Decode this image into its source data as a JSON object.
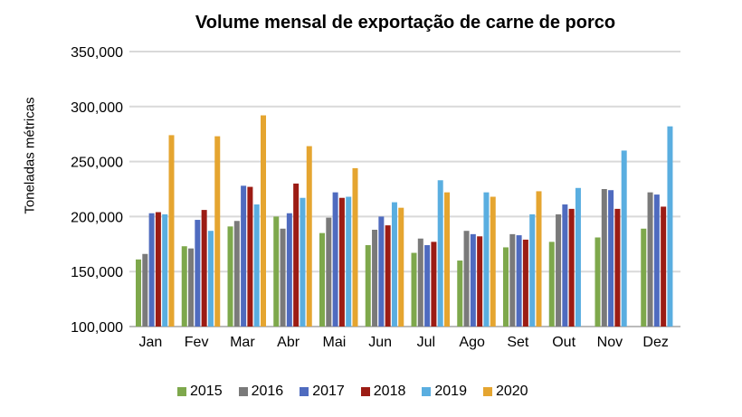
{
  "chart_data": {
    "type": "bar",
    "title": "Volume mensal de exportação de carne de porco",
    "xlabel": "",
    "ylabel": "Toneladas métricas",
    "ylim": [
      100000,
      350000
    ],
    "yticks": [
      "100,000",
      "150,000",
      "200,000",
      "250,000",
      "300,000",
      "350,000"
    ],
    "grid": true,
    "legend": "bottom",
    "categories": [
      "Jan",
      "Fev",
      "Mar",
      "Abr",
      "Mai",
      "Jun",
      "Jul",
      "Ago",
      "Set",
      "Out",
      "Nov",
      "Dez"
    ],
    "series": [
      {
        "name": "2015",
        "color": "#7ea84c",
        "values": [
          161000,
          173000,
          191000,
          200000,
          185000,
          174000,
          167000,
          160000,
          172000,
          177000,
          181000,
          189000
        ]
      },
      {
        "name": "2016",
        "color": "#7a7a7a",
        "values": [
          166000,
          171000,
          196000,
          189000,
          199000,
          188000,
          180000,
          187000,
          184000,
          202000,
          225000,
          222000
        ]
      },
      {
        "name": "2017",
        "color": "#4f6bbf",
        "values": [
          203000,
          197000,
          228000,
          203000,
          222000,
          200000,
          174000,
          184000,
          183000,
          211000,
          224000,
          220000
        ]
      },
      {
        "name": "2018",
        "color": "#9c1c14",
        "values": [
          204000,
          206000,
          227000,
          230000,
          217000,
          192000,
          177000,
          182000,
          179000,
          207000,
          207000,
          209000
        ]
      },
      {
        "name": "2019",
        "color": "#5aaee0",
        "values": [
          202000,
          187000,
          211000,
          217000,
          218000,
          213000,
          233000,
          222000,
          202000,
          226000,
          260000,
          282000
        ]
      },
      {
        "name": "2020",
        "color": "#e5a530",
        "values": [
          274000,
          273000,
          292000,
          264000,
          244000,
          208000,
          222000,
          218000,
          223000,
          null,
          null,
          null
        ]
      }
    ]
  }
}
